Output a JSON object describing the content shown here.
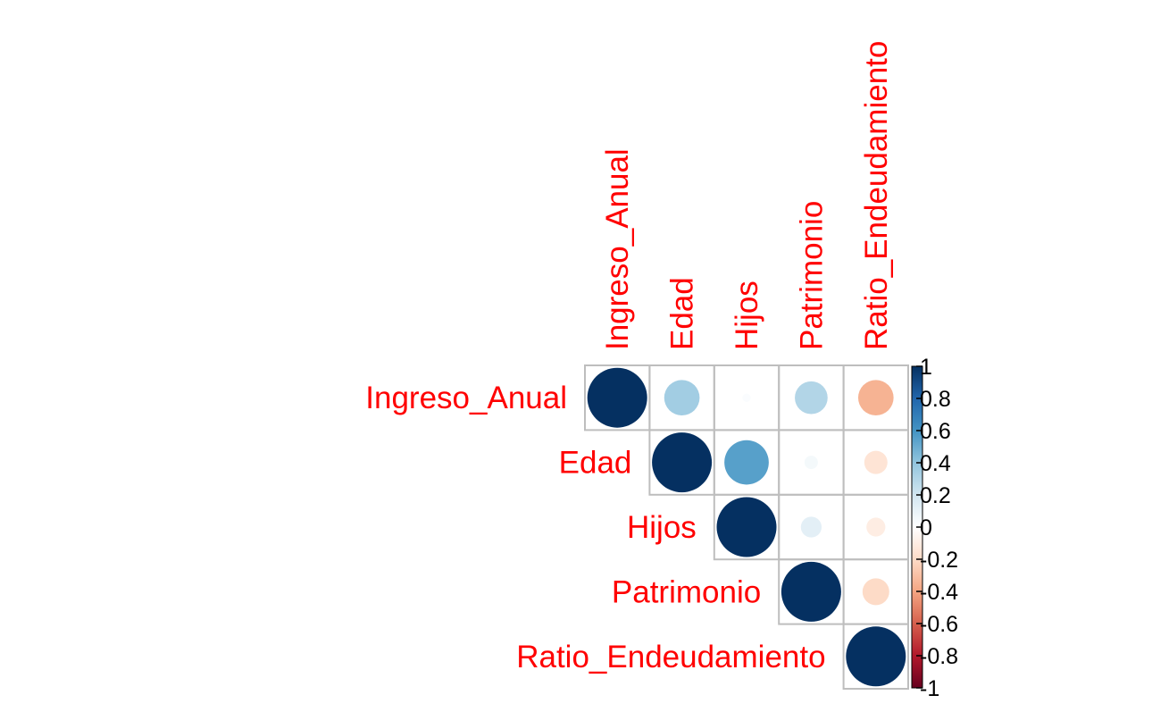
{
  "chart_data": {
    "type": "heatmap",
    "style": "correlation-matrix-circles-upper-triangle",
    "variables": [
      "Ingreso_Anual",
      "Edad",
      "Hijos",
      "Patrimonio",
      "Ratio_Endeudamiento"
    ],
    "matrix": [
      [
        1.0,
        0.35,
        0.02,
        0.3,
        -0.35
      ],
      [
        0.35,
        1.0,
        0.55,
        0.05,
        -0.15
      ],
      [
        0.02,
        0.55,
        1.0,
        0.12,
        -0.1
      ],
      [
        0.3,
        0.05,
        0.12,
        1.0,
        -0.2
      ],
      [
        -0.35,
        -0.15,
        -0.1,
        -0.2,
        1.0
      ]
    ],
    "colorbar": {
      "range": [
        -1,
        1
      ],
      "ticks": [
        1,
        0.8,
        0.6,
        0.4,
        0.2,
        0,
        -0.2,
        -0.4,
        -0.6,
        -0.8,
        -1
      ],
      "tick_labels": [
        "1",
        "0.8",
        "0.6",
        "0.4",
        "0.2",
        "0",
        "-0.2",
        "-0.4",
        "-0.6",
        "-0.8",
        "-1"
      ],
      "colormap": [
        "#67001F",
        "#B2182B",
        "#D6604D",
        "#F4A582",
        "#FDDBC7",
        "#FFFFFF",
        "#D1E5F0",
        "#92C5DE",
        "#4393C3",
        "#2166AC",
        "#053061"
      ]
    },
    "label_color": "#FF0000",
    "grid_color": "#BEBEBE"
  }
}
